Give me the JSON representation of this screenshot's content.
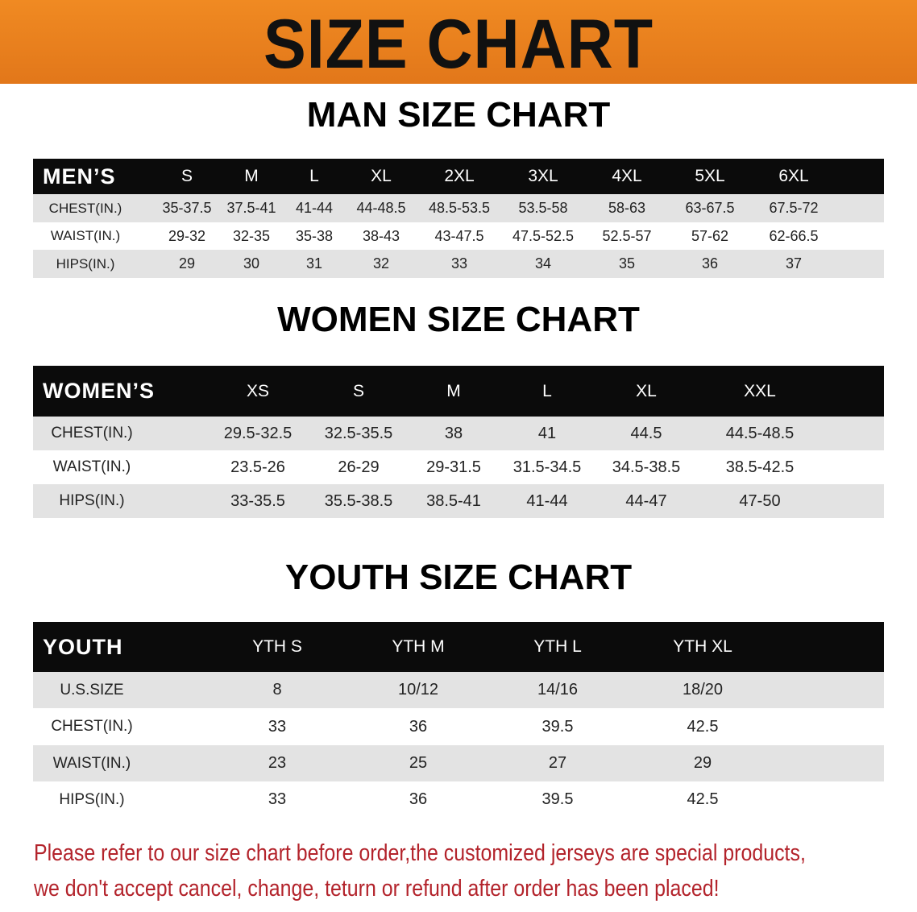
{
  "banner": {
    "title": "SIZE CHART",
    "color": "#e8801e"
  },
  "tables": [
    {
      "section_title": "MAN SIZE CHART",
      "header_label": "MEN’S",
      "sizes": [
        "S",
        "M",
        "L",
        "XL",
        "2XL",
        "3XL",
        "4XL",
        "5XL",
        "6XL"
      ],
      "rows": [
        {
          "label": "CHEST(IN.)",
          "values": [
            "35-37.5",
            "37.5-41",
            "41-44",
            "44-48.5",
            "48.5-53.5",
            "53.5-58",
            "58-63",
            "63-67.5",
            "67.5-72"
          ]
        },
        {
          "label": "WAIST(IN.)",
          "values": [
            "29-32",
            "32-35",
            "35-38",
            "38-43",
            "43-47.5",
            "47.5-52.5",
            "52.5-57",
            "57-62",
            "62-66.5"
          ]
        },
        {
          "label": "HIPS(IN.)",
          "values": [
            "29",
            "30",
            "31",
            "32",
            "33",
            "34",
            "35",
            "36",
            "37"
          ]
        }
      ]
    },
    {
      "section_title": "WOMEN SIZE CHART",
      "header_label": "WOMEN’S",
      "sizes": [
        "XS",
        "S",
        "M",
        "L",
        "XL",
        "XXL"
      ],
      "rows": [
        {
          "label": "CHEST(IN.)",
          "values": [
            "29.5-32.5",
            "32.5-35.5",
            "38",
            "41",
            "44.5",
            "44.5-48.5"
          ]
        },
        {
          "label": "WAIST(IN.)",
          "values": [
            "23.5-26",
            "26-29",
            "29-31.5",
            "31.5-34.5",
            "34.5-38.5",
            "38.5-42.5"
          ]
        },
        {
          "label": "HIPS(IN.)",
          "values": [
            "33-35.5",
            "35.5-38.5",
            "38.5-41",
            "41-44",
            "44-47",
            "47-50"
          ]
        }
      ]
    },
    {
      "section_title": "YOUTH SIZE CHART",
      "header_label": "YOUTH",
      "sizes": [
        "YTH S",
        "YTH M",
        "YTH L",
        "YTH XL"
      ],
      "rows": [
        {
          "label": "U.S.SIZE",
          "values": [
            "8",
            "10/12",
            "14/16",
            "18/20"
          ]
        },
        {
          "label": "CHEST(IN.)",
          "values": [
            "33",
            "36",
            "39.5",
            "42.5"
          ]
        },
        {
          "label": "WAIST(IN.)",
          "values": [
            "23",
            "25",
            "27",
            "29"
          ]
        },
        {
          "label": "HIPS(IN.)",
          "values": [
            "33",
            "36",
            "39.5",
            "42.5"
          ]
        }
      ]
    }
  ],
  "notice": {
    "line1": "Please refer to our size chart before order,the customized jerseys are special products,",
    "line2": "we don't accept cancel, change, teturn or refund after order has been placed!",
    "color": "#b3232b"
  }
}
